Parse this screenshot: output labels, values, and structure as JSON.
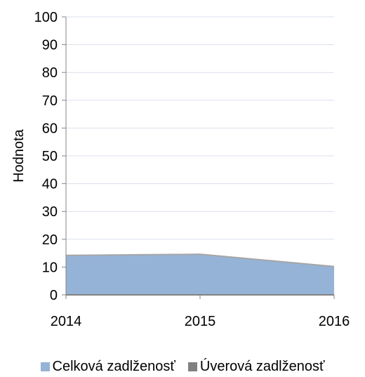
{
  "chart_data": {
    "type": "area",
    "x": [
      "2014",
      "2015",
      "2016"
    ],
    "ylabel": "Hodnota",
    "ylim": [
      0,
      100
    ],
    "yticks": [
      0,
      10,
      20,
      30,
      40,
      50,
      60,
      70,
      80,
      90,
      100
    ],
    "grid": true,
    "legend_position": "bottom",
    "series": [
      {
        "name": "Celková zadlženosť",
        "values": [
          14.2,
          14.6,
          10.2
        ],
        "color": "#95b3d7"
      },
      {
        "name": "Úverová zadlženosť",
        "values": [
          0,
          0,
          0
        ],
        "color": "#808080"
      }
    ]
  }
}
